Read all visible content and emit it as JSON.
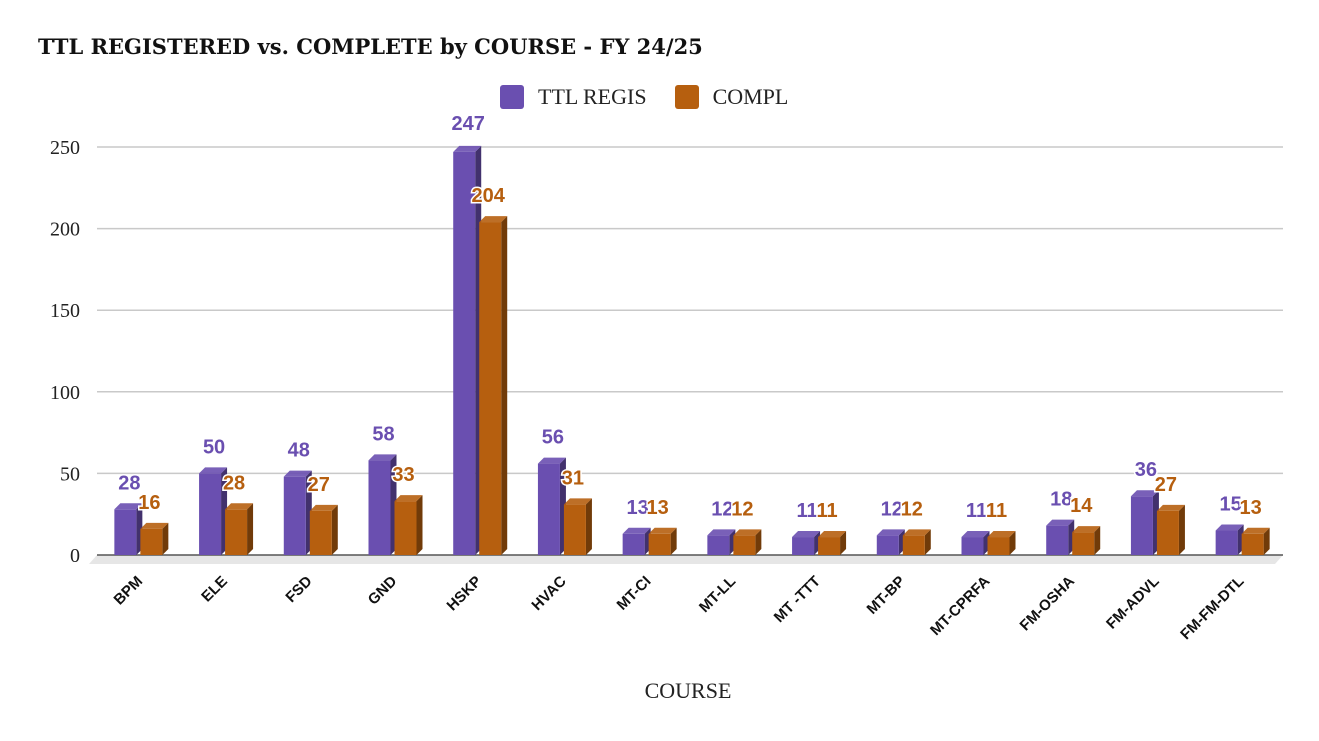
{
  "chart_data": {
    "type": "bar",
    "title": "TTL REGISTERED vs. COMPLETE by COURSE - FY 24/25",
    "xlabel": "COURSE",
    "ylabel": "",
    "ylim": [
      0,
      250
    ],
    "yticks": [
      0,
      50,
      100,
      150,
      200,
      250
    ],
    "grid": true,
    "legend_position": "top-center",
    "categories": [
      "BPM",
      "ELE",
      "FSD",
      "GND",
      "HSKP",
      "HVAC",
      "MT-CI",
      "MT-LL",
      "MT -TTT",
      "MT-BP",
      "MT-CPRFA",
      "FM-OSHA",
      "FM-ADVL",
      "FM-FM-DTL"
    ],
    "series": [
      {
        "name": "TTL REGIS",
        "color": "#6a4fb0",
        "values": [
          28,
          50,
          48,
          58,
          247,
          56,
          13,
          12,
          11,
          12,
          11,
          18,
          36,
          15
        ]
      },
      {
        "name": "COMPL",
        "color": "#b65f0f",
        "values": [
          16,
          28,
          27,
          33,
          204,
          31,
          13,
          12,
          11,
          12,
          11,
          14,
          27,
          13
        ]
      }
    ]
  }
}
